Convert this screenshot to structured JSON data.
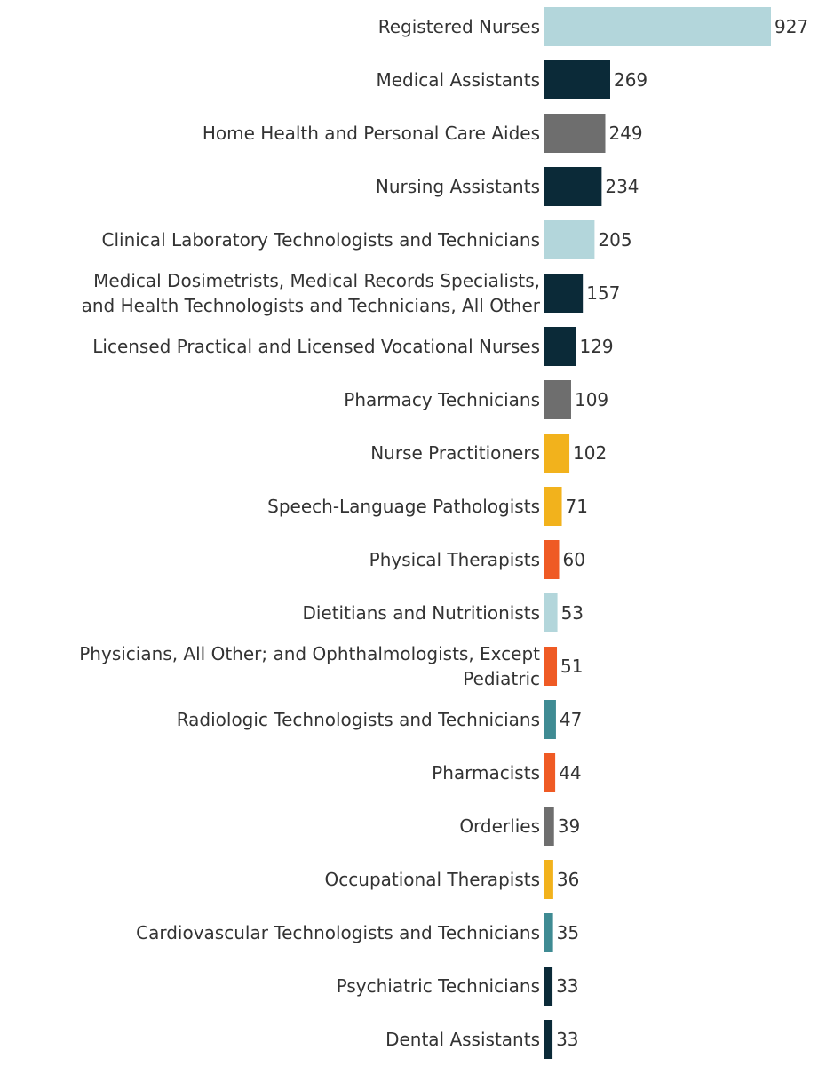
{
  "chart_data": {
    "type": "bar",
    "orientation": "horizontal",
    "categories": [
      [
        "Registered Nurses"
      ],
      [
        "Medical Assistants"
      ],
      [
        "Home Health and Personal Care Aides"
      ],
      [
        "Nursing Assistants"
      ],
      [
        "Clinical Laboratory Technologists and Technicians"
      ],
      [
        "Medical Dosimetrists, Medical Records Specialists,",
        "and Health Technologists and Technicians, All Other"
      ],
      [
        "Licensed Practical and Licensed Vocational Nurses"
      ],
      [
        "Pharmacy Technicians"
      ],
      [
        "Nurse Practitioners"
      ],
      [
        "Speech-Language Pathologists"
      ],
      [
        "Physical Therapists"
      ],
      [
        "Dietitians and Nutritionists"
      ],
      [
        "Physicians, All Other; and Ophthalmologists, Except",
        "Pediatric"
      ],
      [
        "Radiologic Technologists and Technicians"
      ],
      [
        "Pharmacists"
      ],
      [
        "Orderlies"
      ],
      [
        "Occupational Therapists"
      ],
      [
        "Cardiovascular Technologists and Technicians"
      ],
      [
        "Psychiatric Technicians"
      ],
      [
        "Dental Assistants"
      ]
    ],
    "values": [
      927,
      269,
      249,
      234,
      205,
      157,
      129,
      109,
      102,
      71,
      60,
      53,
      51,
      47,
      44,
      39,
      36,
      35,
      33,
      33
    ],
    "value_labels": [
      "927",
      "269",
      "249",
      "234",
      "205",
      "157",
      "129",
      "109",
      "102",
      "71",
      "60",
      "53",
      "51",
      "47",
      "44",
      "39",
      "36",
      "35",
      "33",
      "33"
    ],
    "bar_colors": [
      "#b3d6db",
      "#0b2a38",
      "#6e6e6e",
      "#0b2a38",
      "#b3d6db",
      "#0b2a38",
      "#0b2a38",
      "#6e6e6e",
      "#f2b21c",
      "#f2b21c",
      "#ef5a24",
      "#b3d6db",
      "#ef5a24",
      "#3f8b93",
      "#ef5a24",
      "#6e6e6e",
      "#f2b21c",
      "#3f8b93",
      "#0b2a38",
      "#0b2a38"
    ],
    "xlim": [
      0,
      927
    ],
    "grid": false,
    "legend": "none"
  }
}
